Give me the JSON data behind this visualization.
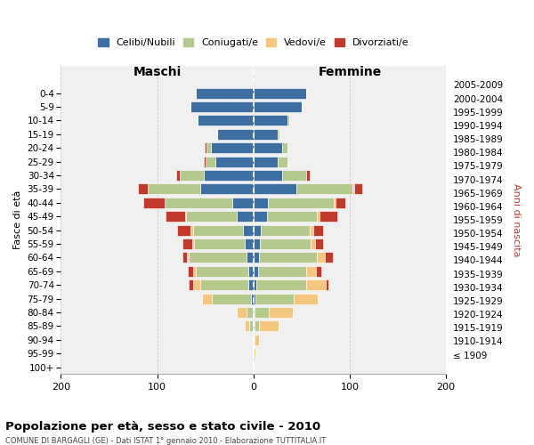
{
  "age_groups": [
    "100+",
    "95-99",
    "90-94",
    "85-89",
    "80-84",
    "75-79",
    "70-74",
    "65-69",
    "60-64",
    "55-59",
    "50-54",
    "45-49",
    "40-44",
    "35-39",
    "30-34",
    "25-29",
    "20-24",
    "15-19",
    "10-14",
    "5-9",
    "0-4"
  ],
  "birth_years": [
    "≤ 1909",
    "1910-1914",
    "1915-1919",
    "1920-1924",
    "1925-1929",
    "1930-1934",
    "1935-1939",
    "1940-1944",
    "1945-1949",
    "1950-1954",
    "1955-1959",
    "1960-1964",
    "1965-1969",
    "1970-1974",
    "1975-1979",
    "1980-1984",
    "1985-1989",
    "1990-1994",
    "1995-1999",
    "2000-2004",
    "2005-2009"
  ],
  "maschi": {
    "celibi": [
      0,
      0,
      0,
      1,
      1,
      3,
      5,
      5,
      7,
      9,
      11,
      17,
      22,
      55,
      52,
      40,
      44,
      38,
      58,
      65,
      60
    ],
    "coniugati": [
      0,
      0,
      1,
      3,
      6,
      40,
      50,
      55,
      60,
      53,
      52,
      53,
      70,
      55,
      25,
      10,
      5,
      0,
      0,
      0,
      0
    ],
    "vedovi": [
      0,
      0,
      0,
      5,
      10,
      10,
      8,
      3,
      2,
      2,
      2,
      1,
      0,
      0,
      0,
      0,
      0,
      0,
      0,
      0,
      0
    ],
    "divorziati": [
      0,
      0,
      0,
      0,
      0,
      0,
      4,
      5,
      5,
      10,
      14,
      20,
      22,
      10,
      3,
      2,
      2,
      0,
      0,
      0,
      0
    ]
  },
  "femmine": {
    "nubili": [
      0,
      0,
      0,
      1,
      1,
      2,
      3,
      5,
      6,
      7,
      8,
      14,
      15,
      45,
      30,
      25,
      30,
      25,
      35,
      50,
      55
    ],
    "coniugate": [
      0,
      0,
      1,
      5,
      15,
      40,
      52,
      50,
      60,
      52,
      50,
      52,
      68,
      58,
      25,
      10,
      5,
      2,
      2,
      0,
      0
    ],
    "vedove": [
      0,
      2,
      5,
      20,
      25,
      25,
      20,
      10,
      8,
      5,
      4,
      3,
      2,
      2,
      0,
      0,
      0,
      0,
      0,
      0,
      0
    ],
    "divorziate": [
      0,
      0,
      0,
      0,
      0,
      0,
      3,
      5,
      8,
      8,
      10,
      18,
      10,
      8,
      3,
      0,
      0,
      0,
      0,
      0,
      0
    ]
  },
  "colors": {
    "celibi": "#3e6fa3",
    "coniugati": "#b5c98e",
    "vedovi": "#f5c77e",
    "divorziati": "#c0392b"
  },
  "title": "Popolazione per età, sesso e stato civile - 2010",
  "subtitle": "COMUNE DI BARGAGLI (GE) - Dati ISTAT 1° gennaio 2010 - Elaborazione TUTTITALIA.IT",
  "ylabel_left": "Fasce di età",
  "ylabel_right": "Anni di nascita",
  "xlim": 200,
  "legend_labels": [
    "Celibi/Nubili",
    "Coniugati/e",
    "Vedovi/e",
    "Divorziati/e"
  ],
  "maschi_label": "Maschi",
  "femmine_label": "Femmine",
  "background_color": "#ffffff",
  "grid_color": "#cccccc"
}
